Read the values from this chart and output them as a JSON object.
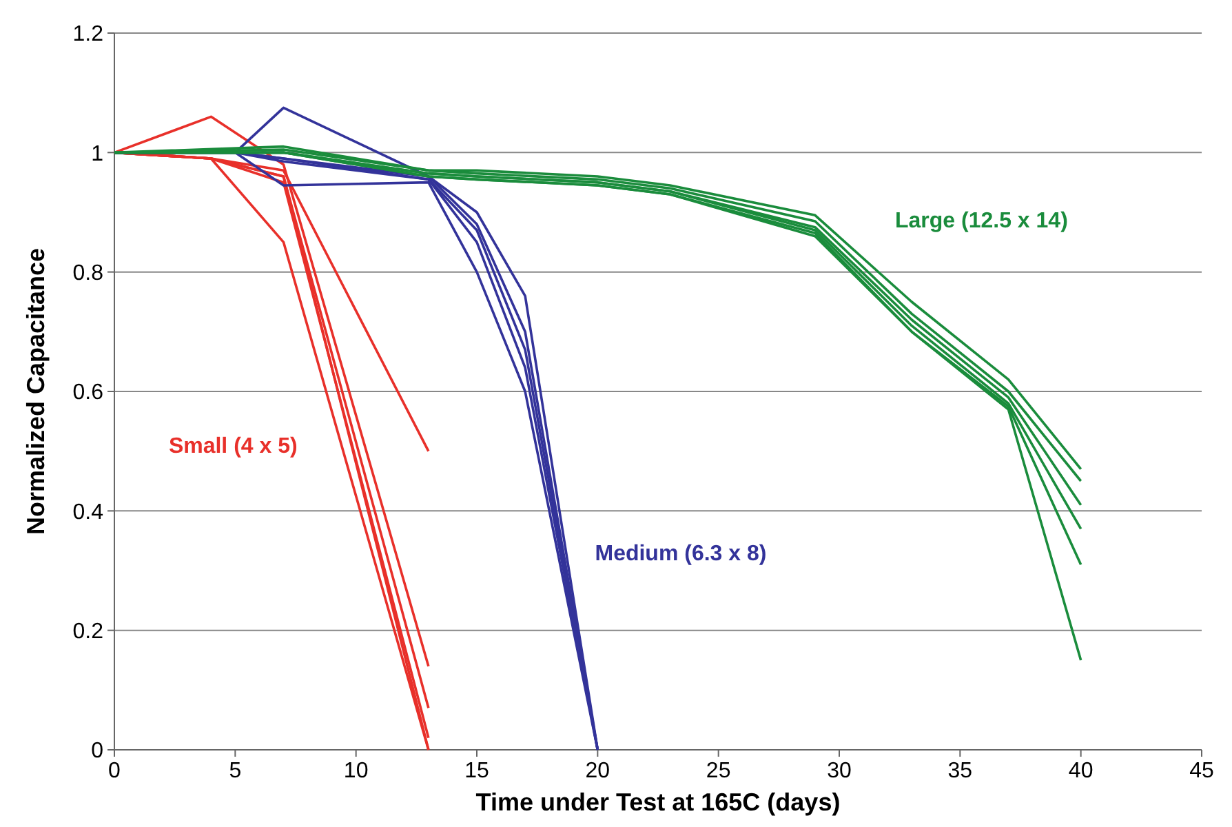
{
  "chart_data": {
    "type": "line",
    "xlabel": "Time under Test at 165C (days)",
    "ylabel": "Normalized Capacitance",
    "xlim": [
      0,
      45
    ],
    "xticks": [
      0,
      5,
      10,
      15,
      20,
      25,
      30,
      35,
      40,
      45
    ],
    "ylim": [
      0,
      1.2
    ],
    "yticks": [
      0,
      0.2,
      0.4,
      0.6,
      0.8,
      1,
      1.2
    ],
    "grid": "y",
    "marker": "none",
    "line_style": "solid",
    "series": [
      {
        "name": "Small (4 x 5)",
        "color": "#e8302a",
        "x": [
          0,
          4,
          7,
          13
        ],
        "values": [
          1,
          1.06,
          0.98,
          0.14
        ]
      },
      {
        "color": "#e8302a",
        "x": [
          0,
          4,
          7,
          13
        ],
        "values": [
          1,
          0.99,
          0.97,
          0.5
        ]
      },
      {
        "color": "#e8302a",
        "x": [
          0,
          4,
          7,
          13
        ],
        "values": [
          1,
          0.99,
          0.85,
          0
        ]
      },
      {
        "color": "#e8302a",
        "x": [
          0,
          4,
          7,
          13
        ],
        "values": [
          1,
          0.99,
          0.96,
          0.07
        ]
      },
      {
        "color": "#e8302a",
        "x": [
          0,
          4,
          7,
          13
        ],
        "values": [
          1,
          0.99,
          0.96,
          0
        ]
      },
      {
        "color": "#e8302a",
        "x": [
          0,
          4,
          7,
          13
        ],
        "values": [
          1,
          0.99,
          0.95,
          0.02
        ]
      },
      {
        "name": "Medium (6.3 x 8)",
        "color": "#33339a",
        "x": [
          0,
          5,
          7,
          13,
          15,
          17,
          20
        ],
        "values": [
          1,
          1,
          1.075,
          0.96,
          0.88,
          0.7,
          0
        ]
      },
      {
        "color": "#33339a",
        "x": [
          0,
          5,
          7,
          13,
          15,
          17,
          20
        ],
        "values": [
          1,
          1,
          0.945,
          0.95,
          0.8,
          0.6,
          0
        ]
      },
      {
        "color": "#33339a",
        "x": [
          0,
          5,
          7,
          13,
          15,
          17,
          20
        ],
        "values": [
          1,
          1,
          0.99,
          0.96,
          0.9,
          0.76,
          0
        ]
      },
      {
        "color": "#33339a",
        "x": [
          0,
          5,
          7,
          13,
          15,
          17,
          20
        ],
        "values": [
          1,
          1,
          0.99,
          0.955,
          0.87,
          0.67,
          0
        ]
      },
      {
        "color": "#33339a",
        "x": [
          0,
          5,
          7,
          13,
          15,
          17,
          20
        ],
        "values": [
          1,
          1,
          0.985,
          0.955,
          0.85,
          0.64,
          0
        ]
      },
      {
        "name": "Large (12.5 x 14)",
        "color": "#1a8c3c",
        "x": [
          0,
          7,
          13,
          15,
          20,
          23,
          29,
          33,
          37,
          40
        ],
        "values": [
          1,
          1.01,
          0.97,
          0.97,
          0.96,
          0.945,
          0.895,
          0.75,
          0.62,
          0.47
        ]
      },
      {
        "color": "#1a8c3c",
        "x": [
          0,
          7,
          13,
          15,
          20,
          23,
          29,
          33,
          37,
          40
        ],
        "values": [
          1,
          1.005,
          0.97,
          0.965,
          0.955,
          0.94,
          0.885,
          0.73,
          0.6,
          0.45
        ]
      },
      {
        "color": "#1a8c3c",
        "x": [
          0,
          7,
          13,
          15,
          20,
          23,
          29,
          33,
          37,
          40
        ],
        "values": [
          1,
          1,
          0.965,
          0.96,
          0.95,
          0.935,
          0.875,
          0.72,
          0.59,
          0.41
        ]
      },
      {
        "color": "#1a8c3c",
        "x": [
          0,
          7,
          13,
          15,
          20,
          23,
          29,
          33,
          37,
          40
        ],
        "values": [
          1,
          1,
          0.965,
          0.96,
          0.95,
          0.935,
          0.87,
          0.71,
          0.58,
          0.37
        ]
      },
      {
        "color": "#1a8c3c",
        "x": [
          0,
          7,
          13,
          15,
          20,
          23,
          29,
          33,
          37,
          40
        ],
        "values": [
          1,
          1,
          0.96,
          0.955,
          0.945,
          0.93,
          0.865,
          0.7,
          0.575,
          0.31
        ]
      },
      {
        "color": "#1a8c3c",
        "x": [
          0,
          7,
          13,
          15,
          20,
          23,
          29,
          33,
          37,
          40
        ],
        "values": [
          1,
          1,
          0.96,
          0.955,
          0.945,
          0.93,
          0.86,
          0.7,
          0.57,
          0.15
        ]
      }
    ]
  }
}
